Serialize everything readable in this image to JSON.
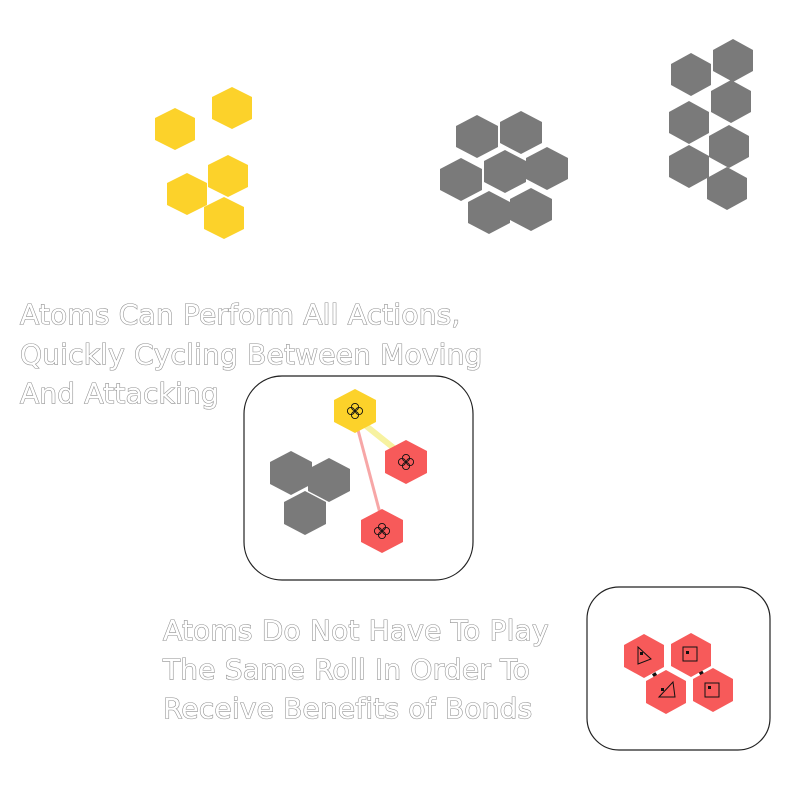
{
  "colors": {
    "yellow": "#FCD22A",
    "gray": "#7A7A7A",
    "red": "#F75A5A",
    "yellow_bond": "#F7F2A0",
    "red_bond": "#F7A7A7",
    "outline_text_stroke": "#8C8C8C",
    "panel_border": "#222222"
  },
  "captions": {
    "caption_1_line_1": "Atoms Can Perform All Actions,",
    "caption_1_line_2": "Quickly Cycling Between Moving",
    "caption_1_line_3": "And Attacking",
    "caption_2_line_1": "Atoms Do Not Have To Play",
    "caption_2_line_2": "The Same Roll In Order To",
    "caption_2_line_3": "Receive Benefits of Bonds"
  },
  "icons": {
    "clover": "clover-icon",
    "triangle": "triangle-icon",
    "square": "square-icon"
  }
}
